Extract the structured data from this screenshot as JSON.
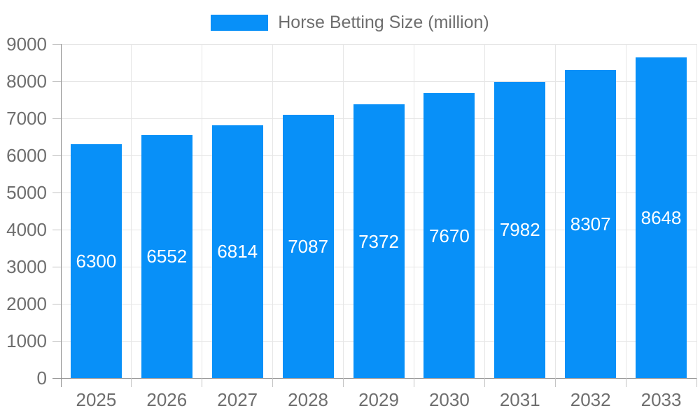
{
  "colors": {
    "bar": "#0890f8",
    "grid": "#e6e6e6",
    "axis": "#909090",
    "tick": "#c4c4c4",
    "tick_text": "#6e6e6e",
    "legend_text": "#6e6e6e",
    "bar_label_text": "#ffffff",
    "background": "#ffffff"
  },
  "chart_data": {
    "type": "bar",
    "title": "Horse Betting Size (million)",
    "legend_position": "top",
    "categories": [
      "2025",
      "2026",
      "2027",
      "2028",
      "2029",
      "2030",
      "2031",
      "2032",
      "2033"
    ],
    "values": [
      6300,
      6552,
      6814,
      7087,
      7372,
      7670,
      7982,
      8307,
      8648
    ],
    "series": [
      {
        "name": "Horse Betting Size (million)",
        "values": [
          6300,
          6552,
          6814,
          7087,
          7372,
          7670,
          7982,
          8307,
          8648
        ]
      }
    ],
    "xlabel": "",
    "ylabel": "",
    "ylim": [
      0,
      9000
    ],
    "ytick_step": 1000,
    "yticks": [
      "0",
      "1000",
      "2000",
      "3000",
      "4000",
      "5000",
      "6000",
      "7000",
      "8000",
      "9000"
    ],
    "grid": true,
    "bar_value_labels": "inside-center"
  }
}
